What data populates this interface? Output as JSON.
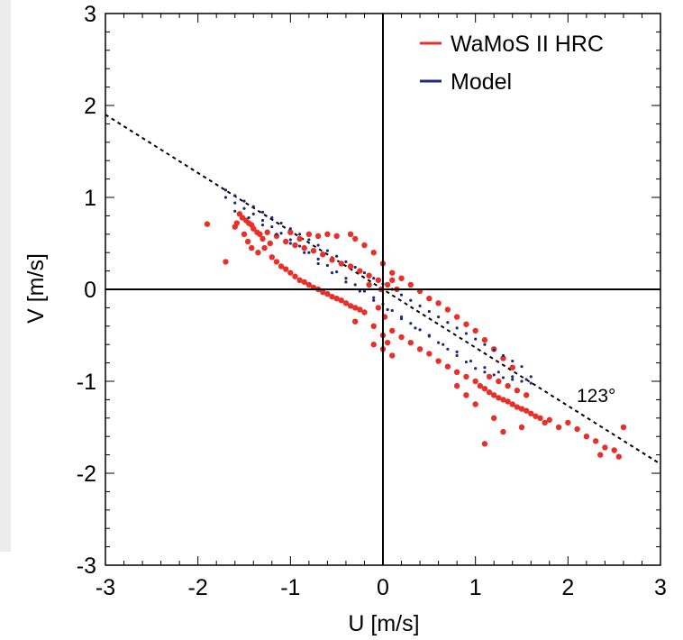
{
  "chart_data": {
    "type": "scatter",
    "xlabel": "U [m/s]",
    "ylabel": "V [m/s]",
    "xlim": [
      -3,
      3
    ],
    "ylim": [
      -3,
      3
    ],
    "x_ticks": [
      "-3",
      "-2",
      "-1",
      "0",
      "1",
      "2",
      "3"
    ],
    "y_ticks": [
      "-3",
      "-2",
      "-1",
      "0",
      "1",
      "2",
      "3"
    ],
    "legend_position": "top-right",
    "zero_axes": true,
    "reference_line": {
      "label": "123°",
      "angle_deg": 123,
      "points": [
        [
          -3.0,
          1.9
        ],
        [
          3.0,
          -1.9
        ]
      ],
      "style": "dashed"
    },
    "series": [
      {
        "name": "WaMoS II HRC",
        "color": "#e8302a",
        "points": [
          [
            -1.9,
            0.71
          ],
          [
            -1.6,
            0.68
          ],
          [
            -1.7,
            0.3
          ],
          [
            -1.55,
            0.82
          ],
          [
            -1.52,
            0.78
          ],
          [
            -1.48,
            0.75
          ],
          [
            -1.45,
            0.72
          ],
          [
            -1.42,
            0.7
          ],
          [
            -1.4,
            0.66
          ],
          [
            -1.36,
            0.62
          ],
          [
            -1.33,
            0.6
          ],
          [
            -1.3,
            0.55
          ],
          [
            -1.58,
            0.72
          ],
          [
            -1.5,
            0.6
          ],
          [
            -1.46,
            0.52
          ],
          [
            -1.42,
            0.45
          ],
          [
            -1.35,
            0.4
          ],
          [
            -1.28,
            0.45
          ],
          [
            -1.22,
            0.5
          ],
          [
            -1.2,
            0.35
          ],
          [
            -1.15,
            0.3
          ],
          [
            -1.1,
            0.25
          ],
          [
            -1.05,
            0.22
          ],
          [
            -1.0,
            0.18
          ],
          [
            -0.95,
            0.14
          ],
          [
            -0.9,
            0.1
          ],
          [
            -0.85,
            0.08
          ],
          [
            -0.8,
            0.05
          ],
          [
            -0.75,
            0.02
          ],
          [
            -0.7,
            0.0
          ],
          [
            -0.65,
            -0.03
          ],
          [
            -0.6,
            -0.05
          ],
          [
            -0.55,
            -0.08
          ],
          [
            -0.5,
            -0.1
          ],
          [
            -0.45,
            -0.12
          ],
          [
            -0.4,
            -0.15
          ],
          [
            -0.35,
            -0.18
          ],
          [
            -0.3,
            -0.2
          ],
          [
            -0.25,
            -0.22
          ],
          [
            -0.2,
            -0.25
          ],
          [
            -1.25,
            0.62
          ],
          [
            -1.15,
            0.58
          ],
          [
            -1.05,
            0.52
          ],
          [
            -0.95,
            0.48
          ],
          [
            -0.85,
            0.45
          ],
          [
            -0.75,
            0.42
          ],
          [
            -0.65,
            0.38
          ],
          [
            -0.55,
            0.32
          ],
          [
            -0.45,
            0.28
          ],
          [
            -0.35,
            0.25
          ],
          [
            -0.25,
            0.2
          ],
          [
            -0.15,
            0.15
          ],
          [
            -0.05,
            0.1
          ],
          [
            0.05,
            0.05
          ],
          [
            0.15,
            0.0
          ],
          [
            -0.9,
            0.55
          ],
          [
            -0.7,
            0.58
          ],
          [
            -0.5,
            0.58
          ],
          [
            -0.3,
            0.55
          ],
          [
            -0.2,
            0.48
          ],
          [
            -0.1,
            0.4
          ],
          [
            -0.35,
            0.6
          ],
          [
            -0.6,
            0.6
          ],
          [
            -0.8,
            0.6
          ],
          [
            -1.0,
            0.62
          ],
          [
            0.0,
            0.28
          ],
          [
            0.1,
            0.18
          ],
          [
            0.2,
            0.12
          ],
          [
            0.3,
            0.05
          ],
          [
            0.4,
            -0.02
          ],
          [
            0.5,
            -0.1
          ],
          [
            0.6,
            -0.15
          ],
          [
            0.7,
            -0.22
          ],
          [
            0.8,
            -0.3
          ],
          [
            0.9,
            -0.38
          ],
          [
            1.0,
            -0.45
          ],
          [
            1.1,
            -0.55
          ],
          [
            1.2,
            -0.65
          ],
          [
            1.3,
            -0.75
          ],
          [
            1.4,
            -0.85
          ],
          [
            -0.3,
            -0.35
          ],
          [
            -0.1,
            -0.4
          ],
          [
            0.0,
            -0.5
          ],
          [
            0.05,
            -0.58
          ],
          [
            0.1,
            -0.45
          ],
          [
            0.2,
            -0.52
          ],
          [
            0.3,
            -0.58
          ],
          [
            0.4,
            -0.65
          ],
          [
            0.5,
            -0.7
          ],
          [
            0.6,
            -0.78
          ],
          [
            0.7,
            -0.84
          ],
          [
            0.8,
            -0.9
          ],
          [
            0.9,
            -0.95
          ],
          [
            1.0,
            -1.0
          ],
          [
            1.05,
            -1.05
          ],
          [
            1.1,
            -1.08
          ],
          [
            1.15,
            -1.12
          ],
          [
            1.2,
            -1.15
          ],
          [
            1.25,
            -1.18
          ],
          [
            1.3,
            -1.2
          ],
          [
            1.35,
            -1.22
          ],
          [
            1.4,
            -1.25
          ],
          [
            1.45,
            -1.28
          ],
          [
            1.5,
            -1.3
          ],
          [
            1.55,
            -1.32
          ],
          [
            1.6,
            -1.35
          ],
          [
            1.65,
            -1.38
          ],
          [
            1.7,
            -1.4
          ],
          [
            1.75,
            -1.45
          ],
          [
            1.8,
            -1.42
          ],
          [
            1.9,
            -1.5
          ],
          [
            2.0,
            -1.45
          ],
          [
            2.1,
            -1.52
          ],
          [
            2.2,
            -1.6
          ],
          [
            2.3,
            -1.65
          ],
          [
            2.4,
            -1.72
          ],
          [
            2.5,
            -1.75
          ],
          [
            2.6,
            -1.5
          ],
          [
            2.35,
            -1.8
          ],
          [
            2.55,
            -1.82
          ],
          [
            1.1,
            -1.68
          ],
          [
            1.3,
            -1.55
          ],
          [
            1.5,
            -1.5
          ],
          [
            1.2,
            -1.4
          ],
          [
            1.0,
            -1.25
          ],
          [
            0.9,
            -1.15
          ],
          [
            0.8,
            -1.05
          ],
          [
            1.15,
            -0.95
          ],
          [
            1.25,
            -1.0
          ],
          [
            1.35,
            -1.05
          ],
          [
            1.45,
            -1.1
          ],
          [
            1.55,
            -1.15
          ],
          [
            -0.05,
            -0.2
          ],
          [
            -0.02,
            0.0
          ],
          [
            0.02,
            -0.3
          ],
          [
            -0.1,
            -0.6
          ],
          [
            0.0,
            -0.65
          ],
          [
            0.1,
            -0.72
          ],
          [
            -0.15,
            0.05
          ],
          [
            0.1,
            0.1
          ]
        ]
      },
      {
        "name": "Model",
        "color": "#1f2a7a",
        "points": [
          [
            -1.7,
            1.08
          ],
          [
            -1.6,
            1.02
          ],
          [
            -1.5,
            0.96
          ],
          [
            -1.4,
            0.9
          ],
          [
            -1.3,
            0.84
          ],
          [
            -1.2,
            0.78
          ],
          [
            -1.1,
            0.72
          ],
          [
            -1.0,
            0.66
          ],
          [
            -0.9,
            0.6
          ],
          [
            -0.8,
            0.54
          ],
          [
            -0.7,
            0.48
          ],
          [
            -0.6,
            0.42
          ],
          [
            -0.5,
            0.36
          ],
          [
            -0.4,
            0.3
          ],
          [
            -0.3,
            0.24
          ],
          [
            -0.2,
            0.18
          ],
          [
            -0.1,
            0.12
          ],
          [
            0.0,
            0.06
          ],
          [
            0.1,
            0.0
          ],
          [
            0.2,
            -0.06
          ],
          [
            0.3,
            -0.12
          ],
          [
            0.4,
            -0.18
          ],
          [
            0.5,
            -0.24
          ],
          [
            0.6,
            -0.3
          ],
          [
            0.7,
            -0.36
          ],
          [
            0.8,
            -0.42
          ],
          [
            0.9,
            -0.48
          ],
          [
            1.0,
            -0.54
          ],
          [
            1.1,
            -0.6
          ],
          [
            1.2,
            -0.66
          ],
          [
            1.3,
            -0.72
          ],
          [
            1.4,
            -0.78
          ],
          [
            1.5,
            -0.84
          ],
          [
            1.6,
            -0.95
          ],
          [
            -1.7,
            1.0
          ],
          [
            -1.6,
            0.94
          ],
          [
            -1.5,
            0.88
          ],
          [
            -1.4,
            0.82
          ],
          [
            -1.3,
            0.75
          ],
          [
            -1.2,
            0.68
          ],
          [
            -1.1,
            0.61
          ],
          [
            -1.0,
            0.54
          ],
          [
            -0.9,
            0.47
          ],
          [
            -0.8,
            0.4
          ],
          [
            -0.7,
            0.33
          ],
          [
            -0.6,
            0.26
          ],
          [
            -0.5,
            0.19
          ],
          [
            -0.4,
            0.12
          ],
          [
            -0.3,
            0.05
          ],
          [
            -0.2,
            -0.02
          ],
          [
            -0.1,
            -0.09
          ],
          [
            0.0,
            -0.16
          ],
          [
            0.1,
            -0.23
          ],
          [
            0.2,
            -0.3
          ],
          [
            0.3,
            -0.37
          ],
          [
            0.4,
            -0.44
          ],
          [
            0.5,
            -0.51
          ],
          [
            0.6,
            -0.58
          ],
          [
            0.7,
            -0.65
          ],
          [
            0.8,
            -0.72
          ],
          [
            0.9,
            -0.79
          ],
          [
            1.0,
            -0.86
          ],
          [
            1.1,
            -0.9
          ],
          [
            1.2,
            -0.93
          ],
          [
            1.3,
            -0.96
          ],
          [
            1.4,
            -0.98
          ],
          [
            1.5,
            -1.0
          ],
          [
            1.6,
            -1.02
          ],
          [
            -1.6,
            0.85
          ],
          [
            -1.45,
            0.78
          ],
          [
            -1.3,
            0.7
          ],
          [
            -1.15,
            0.6
          ],
          [
            -1.0,
            0.5
          ],
          [
            -0.85,
            0.4
          ],
          [
            -0.7,
            0.28
          ],
          [
            -0.55,
            0.18
          ],
          [
            -0.4,
            0.08
          ],
          [
            -0.25,
            -0.02
          ],
          [
            -0.1,
            -0.12
          ],
          [
            0.05,
            -0.22
          ],
          [
            0.2,
            -0.32
          ],
          [
            0.35,
            -0.42
          ],
          [
            0.5,
            -0.5
          ],
          [
            0.65,
            -0.6
          ],
          [
            0.8,
            -0.68
          ],
          [
            0.95,
            -0.78
          ],
          [
            1.1,
            -0.85
          ],
          [
            1.25,
            -0.9
          ],
          [
            1.4,
            -0.95
          ],
          [
            1.55,
            -0.98
          ]
        ]
      }
    ]
  }
}
